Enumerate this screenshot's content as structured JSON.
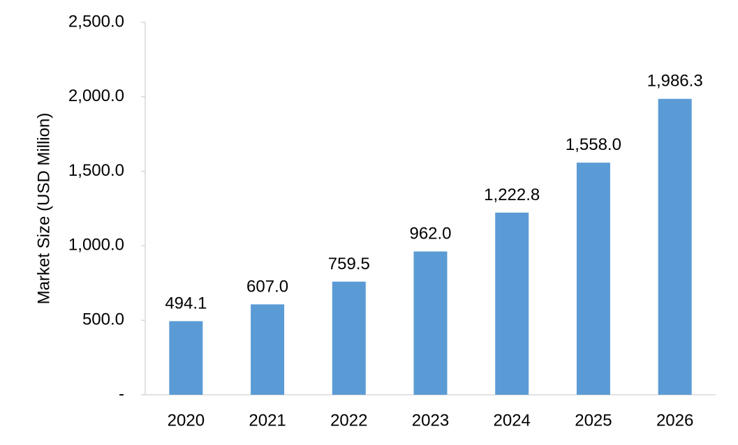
{
  "chart_data": {
    "type": "bar",
    "title": "",
    "xlabel": "",
    "ylabel": "Market Size (USD Million)",
    "categories": [
      "2020",
      "2021",
      "2022",
      "2023",
      "2024",
      "2025",
      "2026"
    ],
    "values": [
      494.1,
      607.0,
      759.5,
      962.0,
      1222.8,
      1558.0,
      1986.3
    ],
    "data_labels": [
      "494.1",
      "607.0",
      "759.5",
      "962.0",
      "1,222.8",
      "1,558.0",
      "1,986.3"
    ],
    "y_ticks": [
      0,
      500,
      1000,
      1500,
      2000,
      2500
    ],
    "y_tick_labels": [
      "-",
      "500.0",
      "1,000.0",
      "1,500.0",
      "2,000.0",
      "2,500.0"
    ],
    "ylim": [
      0,
      2500
    ],
    "grid": false,
    "legend": "none",
    "bar_color": "#5B9BD5",
    "axis_color": "#D9D9D9"
  }
}
